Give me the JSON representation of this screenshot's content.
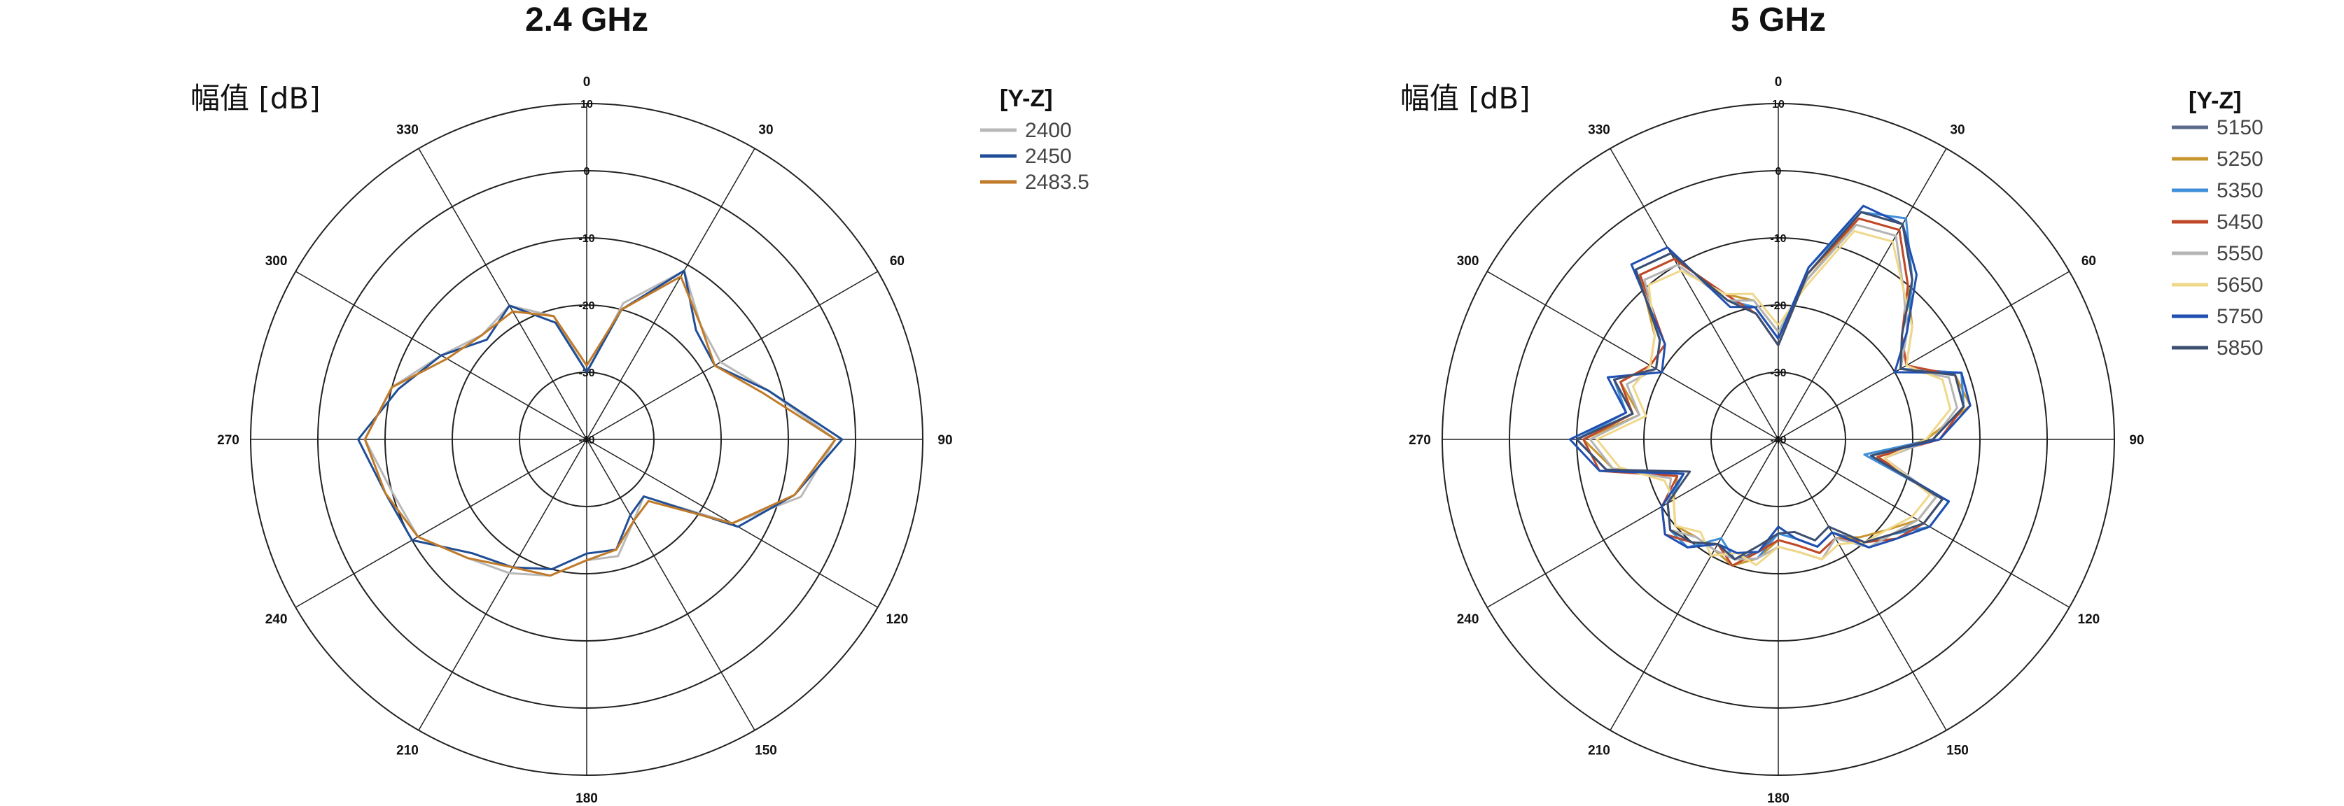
{
  "chart_data": [
    {
      "type": "line",
      "subtype": "polar",
      "title": "2.4 GHz",
      "ylabel": "幅值 [dB]",
      "angle_ticks": [
        0,
        30,
        60,
        90,
        120,
        150,
        180,
        210,
        240,
        270,
        300,
        330
      ],
      "radial_ticks": [
        10,
        0,
        -10,
        -20,
        -30,
        -40
      ],
      "rlim": [
        -40,
        10
      ],
      "grid": true,
      "legend_title": "[Y-Z]",
      "legend_position": "right",
      "angles": [
        0,
        15,
        30,
        45,
        60,
        75,
        90,
        105,
        120,
        135,
        150,
        165,
        180,
        195,
        210,
        225,
        240,
        255,
        270,
        285,
        300,
        315,
        330,
        345
      ],
      "series": [
        {
          "name": "2400",
          "color": "#b8b8b8",
          "values": [
            -30,
            -19,
            -11,
            -16,
            -17,
            -12,
            -3,
            -7,
            -15,
            -28,
            -26,
            -22,
            -22,
            -19,
            -17,
            -15,
            -11,
            -10,
            -7,
            -10,
            -15,
            -18,
            -17,
            -21
          ]
        },
        {
          "name": "2450",
          "color": "#1f4e96",
          "values": [
            -30,
            -20,
            -11,
            -17,
            -18,
            -12,
            -2,
            -8,
            -14,
            -28,
            -27,
            -23,
            -23,
            -20,
            -18,
            -16,
            -10,
            -9,
            -6,
            -11,
            -15,
            -19,
            -17,
            -22
          ]
        },
        {
          "name": "2483.5",
          "color": "#c07a28",
          "values": [
            -29,
            -20,
            -12,
            -16,
            -18,
            -13,
            -3,
            -8,
            -15,
            -27,
            -26,
            -23,
            -22,
            -19,
            -18,
            -15,
            -11,
            -9,
            -7,
            -10,
            -16,
            -18,
            -18,
            -21
          ]
        }
      ]
    },
    {
      "type": "line",
      "subtype": "polar",
      "title": "5 GHz",
      "ylabel": "幅值 [dB]",
      "angle_ticks": [
        0,
        30,
        60,
        90,
        120,
        150,
        180,
        210,
        240,
        270,
        300,
        330
      ],
      "radial_ticks": [
        10,
        0,
        -10,
        -20,
        -30,
        -40
      ],
      "rlim": [
        -40,
        10
      ],
      "grid": true,
      "legend_title": "[Y-Z]",
      "legend_position": "right",
      "angles": [
        0,
        10,
        20,
        30,
        40,
        50,
        60,
        70,
        80,
        90,
        100,
        110,
        120,
        130,
        140,
        150,
        160,
        170,
        180,
        190,
        200,
        210,
        220,
        230,
        240,
        250,
        260,
        270,
        280,
        290,
        300,
        310,
        320,
        330,
        340,
        350
      ],
      "series": [
        {
          "name": "5150",
          "color": "#5b6a8a",
          "values": [
            -25,
            -15,
            -4,
            -3,
            -9,
            -15,
            -19,
            -11,
            -12,
            -17,
            -26,
            -14,
            -15,
            -18,
            -20,
            -24,
            -23,
            -25,
            -26,
            -23,
            -21,
            -22,
            -20,
            -19,
            -21,
            -25,
            -14,
            -10,
            -18,
            -14,
            -19,
            -17,
            -7,
            -8,
            -18,
            -20
          ]
        },
        {
          "name": "5250",
          "color": "#c8962e",
          "values": [
            -24,
            -16,
            -5,
            -4,
            -10,
            -14,
            -18,
            -12,
            -11,
            -18,
            -25,
            -15,
            -16,
            -19,
            -21,
            -23,
            -22,
            -24,
            -25,
            -22,
            -20,
            -21,
            -21,
            -20,
            -22,
            -24,
            -15,
            -11,
            -19,
            -15,
            -18,
            -16,
            -8,
            -9,
            -17,
            -19
          ]
        },
        {
          "name": "5350",
          "color": "#3f8ed8",
          "values": [
            -25,
            -14,
            -4,
            -2,
            -9,
            -15,
            -19,
            -11,
            -12,
            -17,
            -27,
            -13,
            -14,
            -18,
            -19,
            -24,
            -23,
            -25,
            -26,
            -22,
            -21,
            -23,
            -19,
            -19,
            -21,
            -25,
            -14,
            -10,
            -17,
            -14,
            -19,
            -17,
            -7,
            -8,
            -18,
            -20
          ]
        },
        {
          "name": "5450",
          "color": "#c0482a",
          "values": [
            -26,
            -15,
            -5,
            -4,
            -10,
            -16,
            -18,
            -12,
            -12,
            -16,
            -25,
            -14,
            -15,
            -17,
            -20,
            -23,
            -22,
            -24,
            -25,
            -23,
            -20,
            -22,
            -20,
            -18,
            -20,
            -24,
            -13,
            -11,
            -18,
            -15,
            -18,
            -18,
            -8,
            -9,
            -17,
            -21
          ]
        },
        {
          "name": "5550",
          "color": "#b4b4b4",
          "values": [
            -24,
            -16,
            -6,
            -5,
            -11,
            -15,
            -19,
            -13,
            -13,
            -17,
            -24,
            -15,
            -16,
            -18,
            -19,
            -23,
            -21,
            -23,
            -24,
            -22,
            -21,
            -21,
            -21,
            -19,
            -21,
            -23,
            -15,
            -12,
            -19,
            -16,
            -19,
            -17,
            -9,
            -10,
            -18,
            -19
          ]
        },
        {
          "name": "5650",
          "color": "#f0d88a",
          "values": [
            -23,
            -17,
            -7,
            -6,
            -11,
            -14,
            -18,
            -14,
            -14,
            -18,
            -24,
            -16,
            -17,
            -19,
            -20,
            -22,
            -21,
            -23,
            -24,
            -21,
            -22,
            -20,
            -22,
            -20,
            -22,
            -22,
            -16,
            -13,
            -20,
            -17,
            -18,
            -16,
            -10,
            -11,
            -17,
            -18
          ]
        },
        {
          "name": "5750",
          "color": "#1f4fb0",
          "values": [
            -25,
            -14,
            -3,
            -3,
            -8,
            -15,
            -20,
            -11,
            -11,
            -16,
            -26,
            -13,
            -14,
            -17,
            -19,
            -24,
            -23,
            -25,
            -27,
            -23,
            -22,
            -22,
            -19,
            -18,
            -20,
            -25,
            -13,
            -9,
            -17,
            -13,
            -20,
            -18,
            -6,
            -7,
            -19,
            -20
          ]
        },
        {
          "name": "5850",
          "color": "#3d4f70",
          "values": [
            -26,
            -15,
            -4,
            -3,
            -9,
            -16,
            -19,
            -12,
            -12,
            -17,
            -26,
            -14,
            -15,
            -18,
            -20,
            -25,
            -24,
            -26,
            -26,
            -24,
            -21,
            -22,
            -20,
            -19,
            -21,
            -26,
            -14,
            -10,
            -18,
            -14,
            -19,
            -17,
            -7,
            -8,
            -18,
            -21
          ]
        }
      ]
    }
  ]
}
